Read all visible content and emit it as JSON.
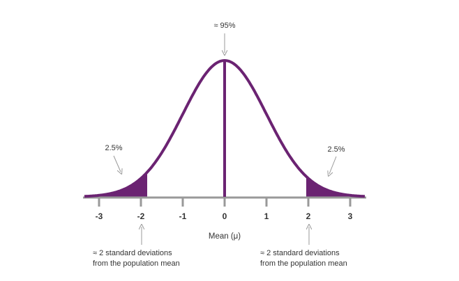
{
  "chart_data": {
    "type": "area",
    "title": "",
    "xlabel": "Mean (μ)",
    "ylabel": "",
    "xlim": [
      -3.35,
      3.35
    ],
    "ticks": [
      -3,
      -2,
      -1,
      0,
      1,
      2,
      3
    ],
    "tick_labels": [
      "-3",
      "-2",
      "-1",
      "0",
      "1",
      "2",
      "3"
    ],
    "mean_line_x": 0,
    "shaded_tails": [
      {
        "from": -3.35,
        "to": -1.85,
        "label": "2.5%"
      },
      {
        "from": 1.95,
        "to": 3.35,
        "label": "2.5%"
      }
    ],
    "center_label": "≈ 95%",
    "left_tail_label": "2.5%",
    "right_tail_label": "2.5%",
    "left_note": [
      "≈ 2 standard deviations",
      "from the population mean"
    ],
    "right_note": [
      "≈ 2 standard deviations",
      "from the population mean"
    ],
    "grid": false,
    "legend": "none",
    "colors": {
      "curve": "#6b2372",
      "axis": "#999999",
      "arrow": "#999999"
    }
  }
}
